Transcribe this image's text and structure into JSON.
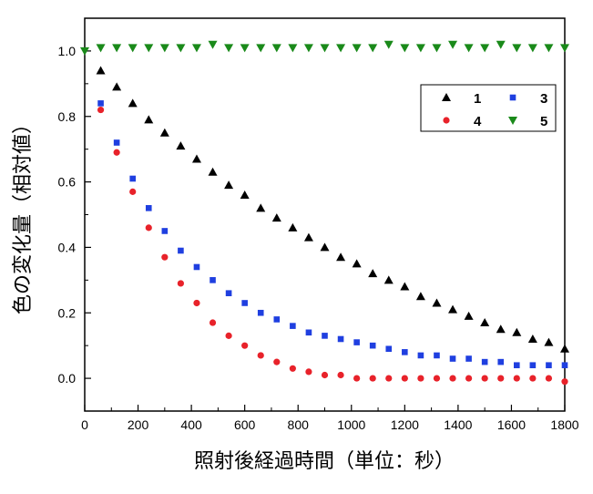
{
  "chart_data": {
    "type": "scatter",
    "xlabel": "照射後経過時間（単位：秒）",
    "ylabel": "色の変化量（相対値）",
    "xlim": [
      0,
      1800
    ],
    "ylim": [
      -0.1,
      1.1
    ],
    "xticks": [
      0,
      200,
      400,
      600,
      800,
      1000,
      1200,
      1400,
      1600,
      1800
    ],
    "yticks": [
      0.0,
      0.2,
      0.4,
      0.6,
      0.8,
      1.0
    ],
    "yticks_labels": [
      "0.0",
      "0.2",
      "0.4",
      "0.6",
      "0.8",
      "1.0"
    ],
    "legend_position": "top-right",
    "x": [
      0,
      60,
      120,
      180,
      240,
      300,
      360,
      420,
      480,
      540,
      600,
      660,
      720,
      780,
      840,
      900,
      960,
      1020,
      1080,
      1140,
      1200,
      1260,
      1320,
      1380,
      1440,
      1500,
      1560,
      1620,
      1680,
      1740,
      1800
    ],
    "series": [
      {
        "name": "1",
        "marker": "triangle-up",
        "color": "#000000",
        "x": [
          60,
          120,
          180,
          240,
          300,
          360,
          420,
          480,
          540,
          600,
          660,
          720,
          780,
          840,
          900,
          960,
          1020,
          1080,
          1140,
          1200,
          1260,
          1320,
          1380,
          1440,
          1500,
          1560,
          1620,
          1680,
          1740,
          1800
        ],
        "values": [
          0.94,
          0.89,
          0.84,
          0.79,
          0.75,
          0.71,
          0.67,
          0.63,
          0.59,
          0.56,
          0.52,
          0.49,
          0.46,
          0.43,
          0.4,
          0.37,
          0.35,
          0.32,
          0.3,
          0.28,
          0.25,
          0.23,
          0.21,
          0.19,
          0.17,
          0.15,
          0.14,
          0.12,
          0.11,
          0.09
        ]
      },
      {
        "name": "3",
        "marker": "square",
        "color": "#1f3fe0",
        "x": [
          60,
          120,
          180,
          240,
          300,
          360,
          420,
          480,
          540,
          600,
          660,
          720,
          780,
          840,
          900,
          960,
          1020,
          1080,
          1140,
          1200,
          1260,
          1320,
          1380,
          1440,
          1500,
          1560,
          1620,
          1680,
          1740,
          1800
        ],
        "values": [
          0.84,
          0.72,
          0.61,
          0.52,
          0.45,
          0.39,
          0.34,
          0.3,
          0.26,
          0.23,
          0.2,
          0.18,
          0.16,
          0.14,
          0.13,
          0.12,
          0.11,
          0.1,
          0.09,
          0.08,
          0.07,
          0.07,
          0.06,
          0.06,
          0.05,
          0.05,
          0.04,
          0.04,
          0.04,
          0.04
        ]
      },
      {
        "name": "4",
        "marker": "circle",
        "color": "#e8222a",
        "x": [
          60,
          120,
          180,
          240,
          300,
          360,
          420,
          480,
          540,
          600,
          660,
          720,
          780,
          840,
          900,
          960,
          1020,
          1080,
          1140,
          1200,
          1260,
          1320,
          1380,
          1440,
          1500,
          1560,
          1620,
          1680,
          1740,
          1800
        ],
        "values": [
          0.82,
          0.69,
          0.57,
          0.46,
          0.37,
          0.29,
          0.23,
          0.17,
          0.13,
          0.1,
          0.07,
          0.05,
          0.03,
          0.02,
          0.01,
          0.01,
          0.0,
          0.0,
          0.0,
          0.0,
          0.0,
          0.0,
          0.0,
          0.0,
          0.0,
          0.0,
          0.0,
          0.0,
          0.0,
          -0.01
        ]
      },
      {
        "name": "5",
        "marker": "triangle-down",
        "color": "#1a8a1a",
        "x": [
          0,
          60,
          120,
          180,
          240,
          300,
          360,
          420,
          480,
          540,
          600,
          660,
          720,
          780,
          840,
          900,
          960,
          1020,
          1080,
          1140,
          1200,
          1260,
          1320,
          1380,
          1440,
          1500,
          1560,
          1620,
          1680,
          1740,
          1800
        ],
        "values": [
          1.0,
          1.01,
          1.01,
          1.01,
          1.01,
          1.01,
          1.01,
          1.01,
          1.02,
          1.01,
          1.01,
          1.01,
          1.01,
          1.01,
          1.01,
          1.01,
          1.01,
          1.01,
          1.01,
          1.02,
          1.01,
          1.01,
          1.01,
          1.02,
          1.01,
          1.01,
          1.02,
          1.01,
          1.01,
          1.01,
          1.01
        ]
      }
    ],
    "legend_order": [
      "1",
      "3",
      "4",
      "5"
    ]
  }
}
